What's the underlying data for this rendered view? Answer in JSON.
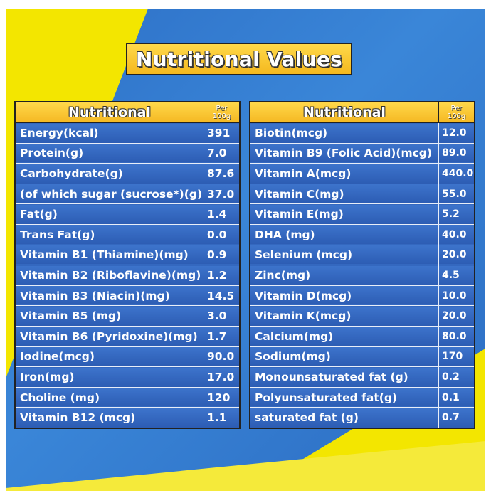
{
  "title": "Nutritional Values",
  "header": {
    "name": "Nutritional",
    "per_line1": "Per",
    "per_line2": "100g"
  },
  "left_rows": [
    {
      "name": "Energy(kcal)",
      "value": "391"
    },
    {
      "name": "Protein(g)",
      "value": "7.0"
    },
    {
      "name": "Carbohydrate(g)",
      "value": "87.6"
    },
    {
      "name": "(of which sugar (sucrose*)(g)",
      "value": "37.0"
    },
    {
      "name": "Fat(g)",
      "value": "1.4"
    },
    {
      "name": "Trans Fat(g)",
      "value": "0.0"
    },
    {
      "name": "Vitamin B1 (Thiamine)(mg)",
      "value": "0.9"
    },
    {
      "name": "Vitamin B2 (Riboflavine)(mg)",
      "value": "1.2"
    },
    {
      "name": "Vitamin B3 (Niacin)(mg)",
      "value": "14.5"
    },
    {
      "name": "Vitamin B5 (mg)",
      "value": "3.0"
    },
    {
      "name": "Vitamin B6 (Pyridoxine)(mg)",
      "value": "1.7"
    },
    {
      "name": "Iodine(mcg)",
      "value": "90.0"
    },
    {
      "name": "Iron(mg)",
      "value": "17.0"
    },
    {
      "name": "Choline (mg)",
      "value": "120"
    },
    {
      "name": "Vitamin B12 (mcg)",
      "value": "1.1"
    }
  ],
  "right_rows": [
    {
      "name": "Biotin(mcg)",
      "value": "12.0"
    },
    {
      "name": "Vitamin B9 (Folic Acid)(mcg)",
      "value": "89.0"
    },
    {
      "name": "Vitamin A(mcg)",
      "value": "440.0"
    },
    {
      "name": "Vitamin C(mg)",
      "value": "55.0"
    },
    {
      "name": "Vitamin E(mg)",
      "value": "5.2"
    },
    {
      "name": "DHA (mg)",
      "value": "40.0"
    },
    {
      "name": "Selenium (mcg)",
      "value": "20.0"
    },
    {
      "name": "Zinc(mg)",
      "value": "4.5"
    },
    {
      "name": "Vitamin D(mcg)",
      "value": "10.0"
    },
    {
      "name": "Vitamin K(mcg)",
      "value": "20.0"
    },
    {
      "name": "Calcium(mg)",
      "value": "80.0"
    },
    {
      "name": "Sodium(mg)",
      "value": "170"
    },
    {
      "name": "Monounsaturated fat (g)",
      "value": "0.2"
    },
    {
      "name": "Polyunsaturated fat(g)",
      "value": "0.1"
    },
    {
      "name": "saturated fat (g)",
      "value": "0.7"
    }
  ],
  "colors": {
    "background_blue": "#3a86d8",
    "accent_yellow": "#f3e600",
    "header_gold": "#f5b823"
  }
}
